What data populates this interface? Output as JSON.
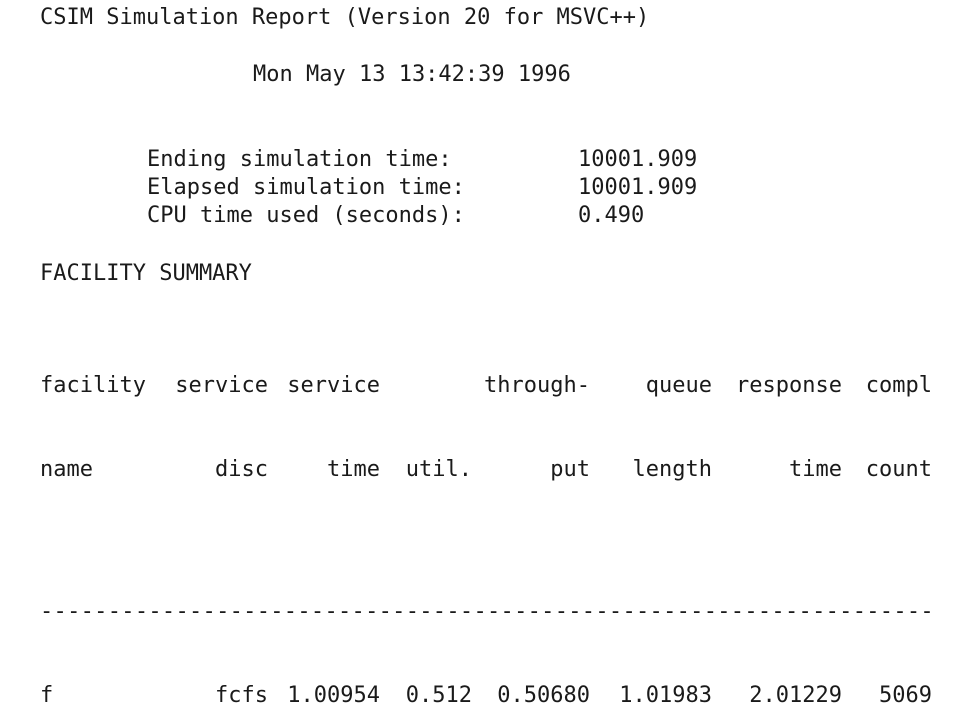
{
  "report": {
    "title": "CSIM Simulation Report (Version 20 for MSVC++)",
    "date": "Mon May 13 13:42:39 1996"
  },
  "stats": [
    {
      "label": "Ending simulation time:",
      "value": "10001.909"
    },
    {
      "label": "Elapsed simulation time:",
      "value": "10001.909"
    },
    {
      "label": "CPU time used (seconds):",
      "value": "0.490"
    }
  ],
  "facility_summary": {
    "title": "FACILITY SUMMARY",
    "headers": [
      [
        "facility",
        "name"
      ],
      [
        "service",
        "disc"
      ],
      [
        "service",
        "time"
      ],
      [
        "",
        "util."
      ],
      [
        "through-",
        "put"
      ],
      [
        "queue",
        "length"
      ],
      [
        "response",
        "time"
      ],
      [
        "compl",
        "count"
      ]
    ],
    "separator": "--------------------------------------------------------------------------------",
    "rows": [
      [
        "f",
        "fcfs",
        "1.00954",
        "0.512",
        "0.50680",
        "1.01983",
        "2.01229",
        "5069"
      ]
    ]
  }
}
